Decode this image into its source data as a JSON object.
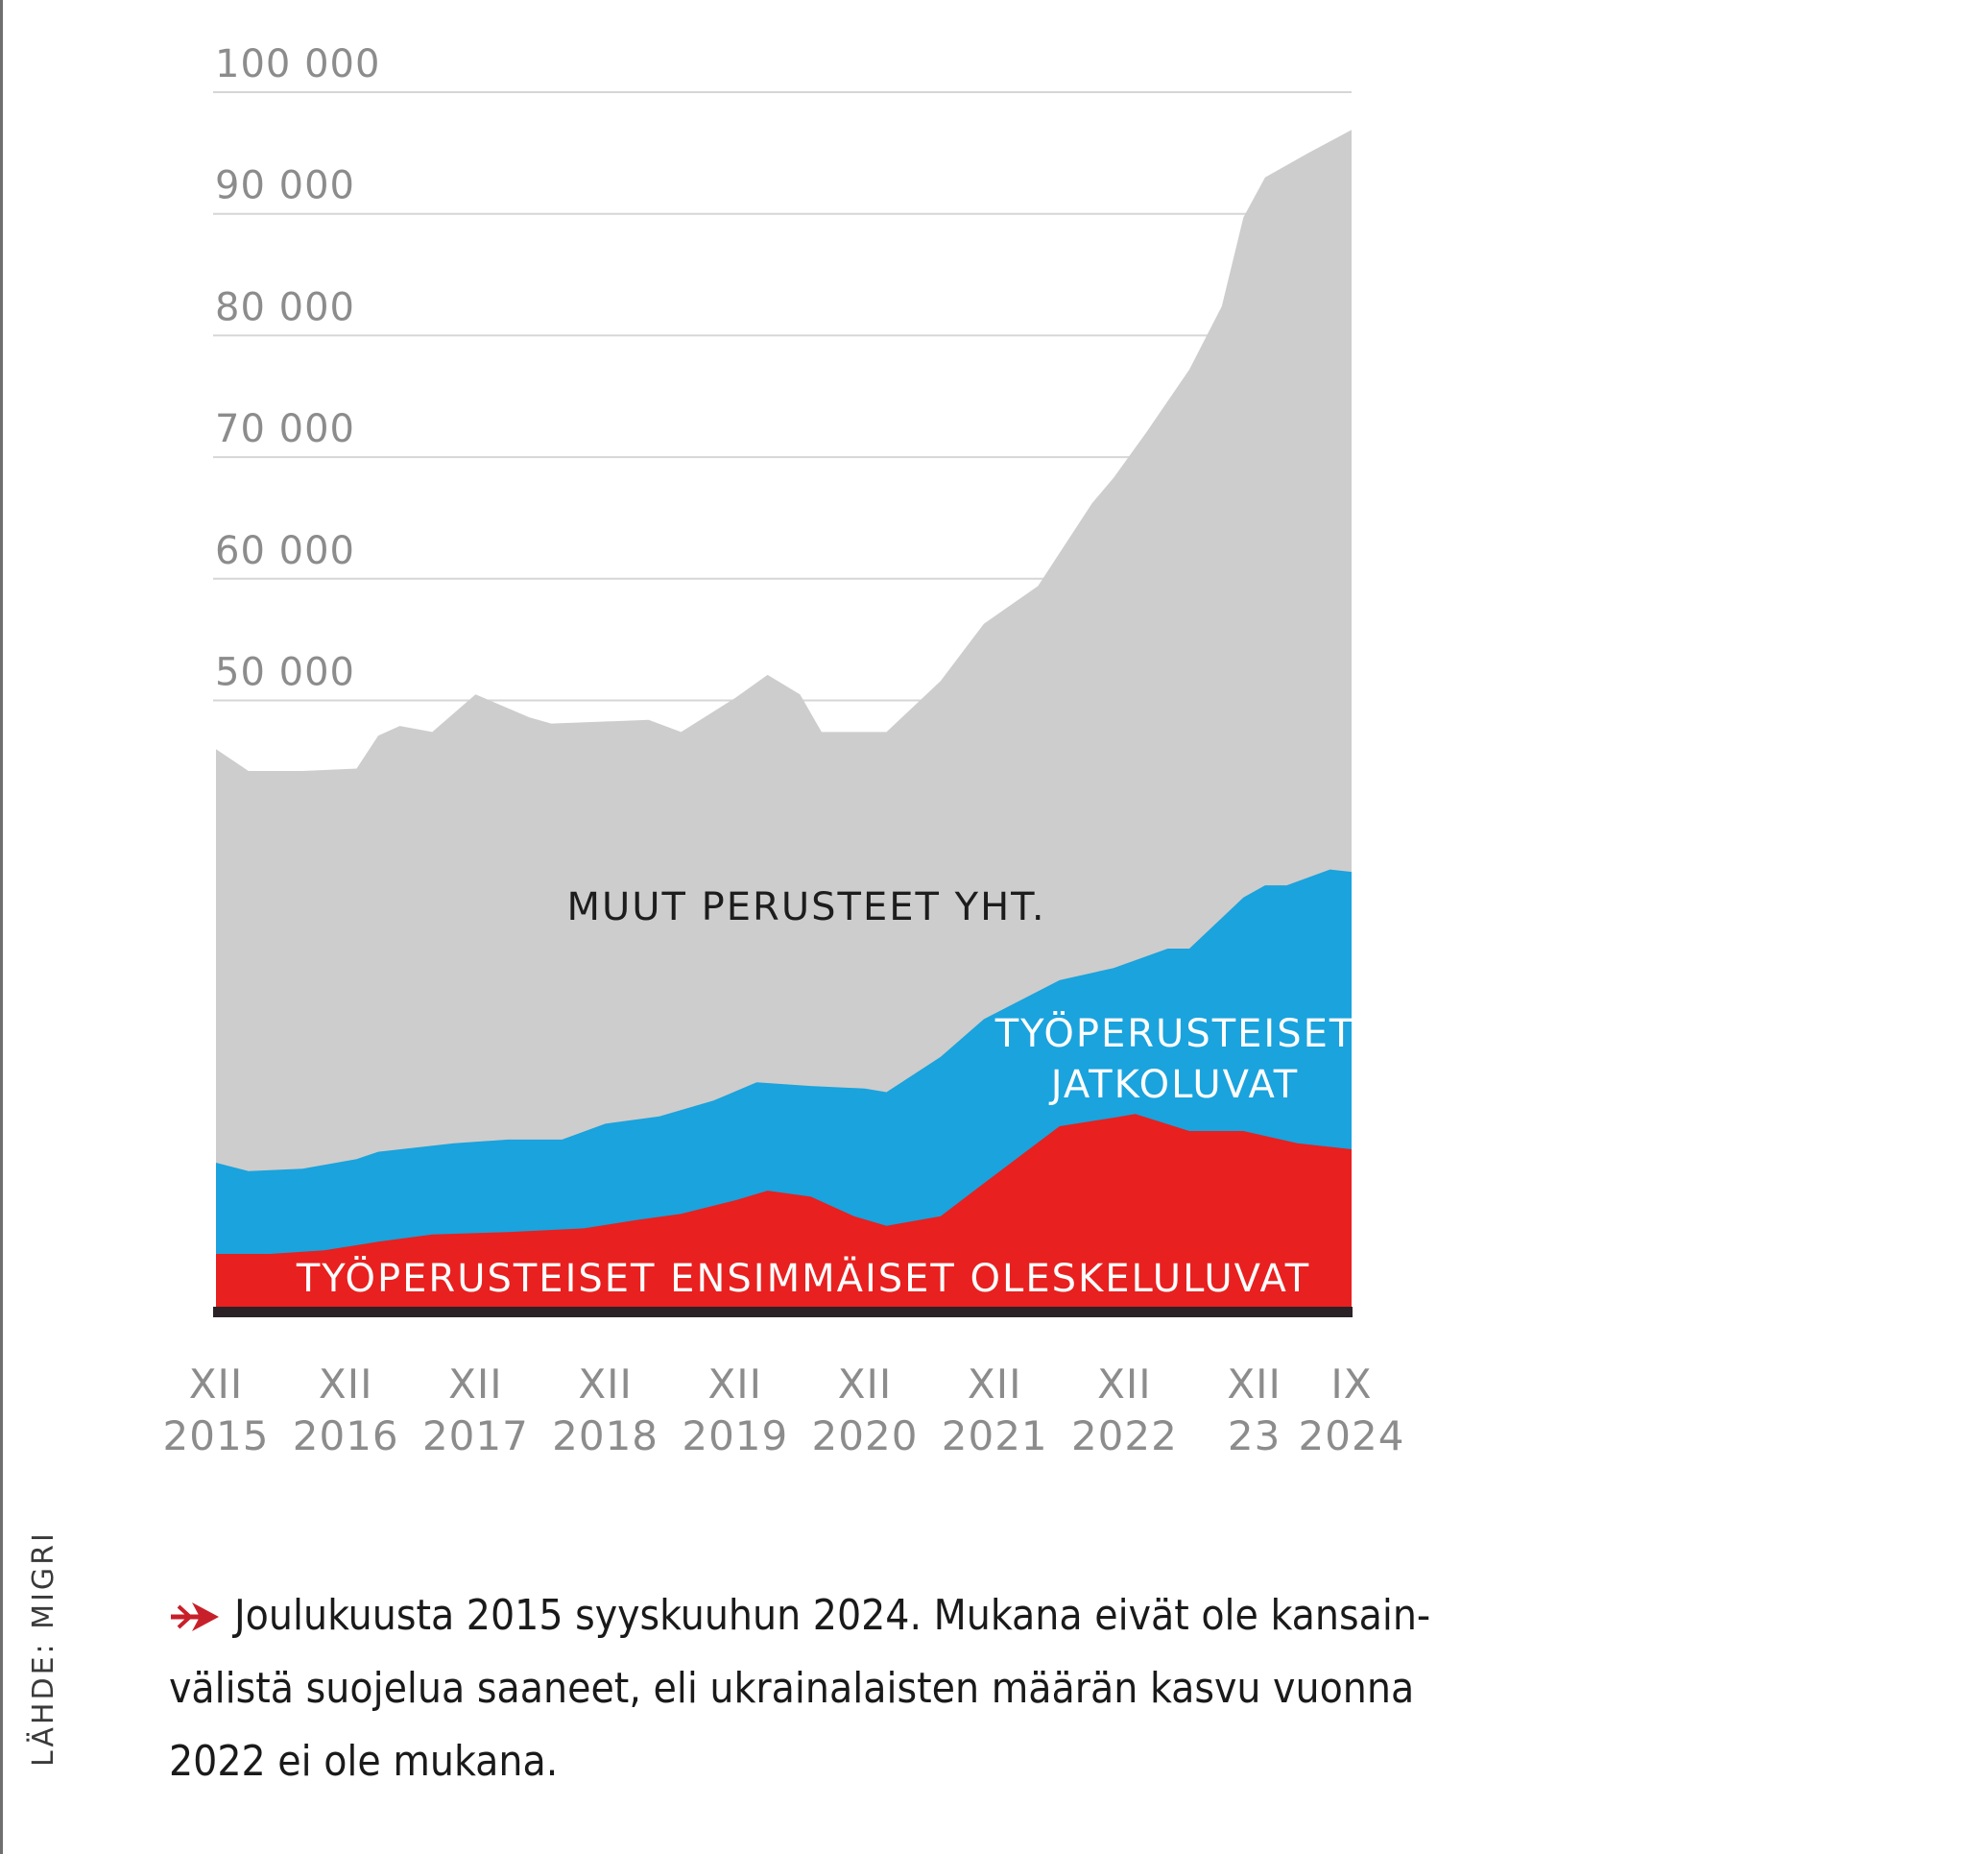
{
  "chart_data": {
    "type": "area",
    "stacked": true,
    "title": "",
    "xlabel": "",
    "ylabel": "",
    "ylim": [
      0,
      100000
    ],
    "yticks": [
      50000,
      60000,
      70000,
      80000,
      90000,
      100000
    ],
    "ytick_labels": [
      "50 000",
      "60 000",
      "70 000",
      "80 000",
      "90 000",
      "100 000"
    ],
    "grid": true,
    "x_unit": "months since XII 2015",
    "xlim": [
      0,
      105
    ],
    "xticks": [
      {
        "x": 0,
        "top": "XII",
        "bottom": "2015"
      },
      {
        "x": 12,
        "top": "XII",
        "bottom": "2016"
      },
      {
        "x": 24,
        "top": "XII",
        "bottom": "2017"
      },
      {
        "x": 36,
        "top": "XII",
        "bottom": "2018"
      },
      {
        "x": 48,
        "top": "XII",
        "bottom": "2019"
      },
      {
        "x": 60,
        "top": "XII",
        "bottom": "2020"
      },
      {
        "x": 72,
        "top": "XII",
        "bottom": "2021"
      },
      {
        "x": 84,
        "top": "XII",
        "bottom": "2022"
      },
      {
        "x": 96,
        "top": "XII",
        "bottom": "23"
      },
      {
        "x": 105,
        "top": "IX",
        "bottom": "2024"
      }
    ],
    "series": [
      {
        "name": "TYÖPERUSTEISET ENSIMMÄISET OLESKELULUVAT",
        "color": "#e8201f",
        "cumulative_top": true,
        "points": [
          [
            0,
            4500
          ],
          [
            5,
            4500
          ],
          [
            10,
            4800
          ],
          [
            15,
            5500
          ],
          [
            20,
            6100
          ],
          [
            27,
            6300
          ],
          [
            34,
            6600
          ],
          [
            39,
            7300
          ],
          [
            43,
            7800
          ],
          [
            48,
            8900
          ],
          [
            51,
            9700
          ],
          [
            55,
            9200
          ],
          [
            59,
            7600
          ],
          [
            62,
            6800
          ],
          [
            67,
            7600
          ],
          [
            71,
            10300
          ],
          [
            78,
            15000
          ],
          [
            83,
            15700
          ],
          [
            85,
            16000
          ],
          [
            90,
            14600
          ],
          [
            95,
            14600
          ],
          [
            100,
            13600
          ],
          [
            105,
            13100
          ]
        ]
      },
      {
        "name": "TYÖPERUSTEISET JATKOLUVAT",
        "color": "#1aa3dd",
        "cumulative_top": true,
        "points": [
          [
            0,
            12000
          ],
          [
            3,
            11300
          ],
          [
            8,
            11500
          ],
          [
            13,
            12300
          ],
          [
            15,
            12900
          ],
          [
            22,
            13600
          ],
          [
            27,
            13900
          ],
          [
            32,
            13900
          ],
          [
            36,
            15200
          ],
          [
            41,
            15800
          ],
          [
            46,
            17100
          ],
          [
            50,
            18600
          ],
          [
            55,
            18300
          ],
          [
            60,
            18100
          ],
          [
            62,
            17800
          ],
          [
            67,
            20700
          ],
          [
            71,
            23800
          ],
          [
            78,
            27000
          ],
          [
            83,
            28000
          ],
          [
            88,
            29600
          ],
          [
            90,
            29600
          ],
          [
            95,
            33800
          ],
          [
            97,
            34800
          ],
          [
            99,
            34800
          ],
          [
            103,
            36100
          ],
          [
            105,
            35900
          ]
        ]
      },
      {
        "name": "MUUT PERUSTEET YHT.",
        "color": "#cdcdcd",
        "cumulative_top": true,
        "points": [
          [
            0,
            46000
          ],
          [
            3,
            44200
          ],
          [
            8,
            44200
          ],
          [
            13,
            44400
          ],
          [
            15,
            47100
          ],
          [
            17,
            47900
          ],
          [
            20,
            47400
          ],
          [
            24,
            50500
          ],
          [
            29,
            48600
          ],
          [
            31,
            48100
          ],
          [
            40,
            48400
          ],
          [
            43,
            47400
          ],
          [
            48,
            50200
          ],
          [
            51,
            52100
          ],
          [
            54,
            50500
          ],
          [
            56,
            47400
          ],
          [
            62,
            47400
          ],
          [
            67,
            51600
          ],
          [
            71,
            56300
          ],
          [
            76,
            59400
          ],
          [
            81,
            66200
          ],
          [
            83,
            68300
          ],
          [
            86,
            72000
          ],
          [
            90,
            77200
          ],
          [
            93,
            82400
          ],
          [
            95,
            89700
          ],
          [
            97,
            93000
          ],
          [
            101,
            95000
          ],
          [
            105,
            96900
          ]
        ]
      }
    ],
    "annotations": [
      {
        "text": "MUUT PERUSTEET YHT.",
        "series": "MUUT PERUSTEET YHT."
      },
      {
        "text": "TYÖPERUSTEISET",
        "series": "TYÖPERUSTEISET JATKOLUVAT"
      },
      {
        "text": "JATKOLUVAT",
        "series": "TYÖPERUSTEISET JATKOLUVAT"
      },
      {
        "text": "TYÖPERUSTEISET ENSIMMÄISET OLESKELULUVAT",
        "series": "TYÖPERUSTEISET ENSIMMÄISET OLESKELULUVAT"
      }
    ]
  },
  "source": "LÄHDE: MIGRI",
  "caption": {
    "icon": "arrow-right-icon",
    "accent_color": "#c8202a",
    "lines": [
      "Joulukuusta 2015 syyskuuhun 2024. Mukana eivät ole kansain-",
      "välistä suojelua saaneet, eli ukrainalaisten määrän kasvu vuonna",
      "2022 ei ole mukana."
    ]
  }
}
